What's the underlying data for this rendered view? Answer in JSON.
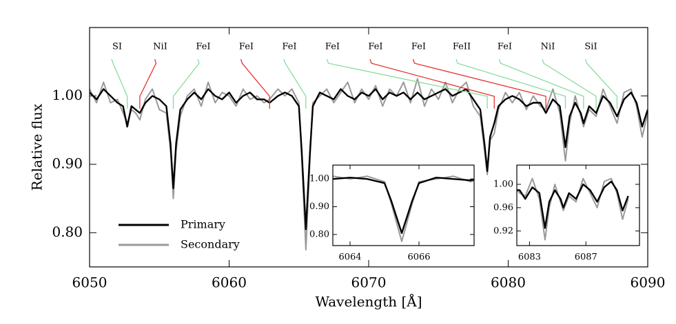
{
  "chart_data": [
    {
      "type": "line",
      "xlabel": "Wavelength [Å]",
      "ylabel": "Relative flux",
      "xlim": [
        6050,
        6090
      ],
      "ylim": [
        0.75,
        1.1
      ],
      "xticks": [
        6050,
        6060,
        6070,
        6080,
        6090
      ],
      "yticks": [
        {
          "value": 0.8,
          "label": "0.80"
        },
        {
          "value": 0.9,
          "label": "0.90"
        },
        {
          "value": 1.0,
          "label": "1.00"
        }
      ],
      "legend": "lower left",
      "x": [
        6050.0,
        6050.5,
        6051.0,
        6051.5,
        6052.0,
        6052.4,
        6052.7,
        6053.0,
        6053.3,
        6053.6,
        6054.0,
        6054.5,
        6055.0,
        6055.5,
        6055.8,
        6056.0,
        6056.2,
        6056.5,
        6057.0,
        6057.5,
        6058.0,
        6058.5,
        6059.0,
        6059.5,
        6060.0,
        6060.5,
        6061.0,
        6061.5,
        6062.0,
        6062.5,
        6062.9,
        6063.5,
        6064.0,
        6064.5,
        6065.0,
        6065.2,
        6065.5,
        6065.8,
        6066.0,
        6066.5,
        6067.0,
        6067.5,
        6068.0,
        6068.5,
        6069.0,
        6069.5,
        6070.0,
        6070.5,
        6071.0,
        6071.5,
        6072.0,
        6072.5,
        6073.0,
        6073.5,
        6074.0,
        6074.5,
        6075.0,
        6075.5,
        6076.0,
        6076.5,
        6077.0,
        6077.5,
        6078.0,
        6078.3,
        6078.5,
        6078.7,
        6079.0,
        6079.3,
        6079.8,
        6080.3,
        6080.8,
        6081.3,
        6081.8,
        6082.3,
        6082.7,
        6083.2,
        6083.7,
        6084.1,
        6084.4,
        6084.8,
        6085.2,
        6085.4,
        6085.8,
        6086.3,
        6086.8,
        6087.3,
        6087.8,
        6088.3,
        6088.8,
        6089.2,
        6089.6,
        6090.0
      ],
      "series": [
        {
          "name": "Primary",
          "color": "#000000",
          "values": [
            1.005,
            0.995,
            1.01,
            1.0,
            0.99,
            0.985,
            0.955,
            0.985,
            0.98,
            0.975,
            0.99,
            1.0,
            0.995,
            0.985,
            0.93,
            0.865,
            0.93,
            0.98,
            0.995,
            1.005,
            0.995,
            1.01,
            1.0,
            0.995,
            1.005,
            0.99,
            1.0,
            1.005,
            0.995,
            0.995,
            0.99,
            1.0,
            1.005,
            1.0,
            0.985,
            0.92,
            0.805,
            0.92,
            0.985,
            1.005,
            1.0,
            0.995,
            1.01,
            1.0,
            0.995,
            1.005,
            1.0,
            1.01,
            0.995,
            1.005,
            1.0,
            1.005,
            0.995,
            1.005,
            0.995,
            1.0,
            1.005,
            1.01,
            1.0,
            1.005,
            1.01,
            0.995,
            0.98,
            0.93,
            0.89,
            0.94,
            0.96,
            0.985,
            0.995,
            1.0,
            0.995,
            0.985,
            0.99,
            0.99,
            0.975,
            0.995,
            0.985,
            0.925,
            0.97,
            0.99,
            0.975,
            0.96,
            0.985,
            0.975,
            1.0,
            0.99,
            0.97,
            0.995,
            1.005,
            0.99,
            0.955,
            0.98
          ]
        },
        {
          "name": "Secondary",
          "color": "#999999",
          "values": [
            1.01,
            0.99,
            1.02,
            0.99,
            0.995,
            0.975,
            0.96,
            0.98,
            0.975,
            0.965,
            0.995,
            1.01,
            0.98,
            0.975,
            0.92,
            0.85,
            0.92,
            0.97,
            1.0,
            1.01,
            0.985,
            1.02,
            0.99,
            1.005,
            1.0,
            0.985,
            1.01,
            0.995,
            1.0,
            0.99,
            0.995,
            1.01,
            1.0,
            1.01,
            0.99,
            0.91,
            0.775,
            0.91,
            0.99,
            1.0,
            1.01,
            0.99,
            1.005,
            1.02,
            0.99,
            1.01,
            0.995,
            1.015,
            0.985,
            1.01,
            1.0,
            1.02,
            0.99,
            1.025,
            0.985,
            1.01,
            0.995,
            1.02,
            0.99,
            1.01,
            1.02,
            0.985,
            0.97,
            0.92,
            0.885,
            0.935,
            0.945,
            0.98,
            1.005,
            0.99,
            1.005,
            0.98,
            1.0,
            0.985,
            0.98,
            1.01,
            0.975,
            0.905,
            0.96,
            1.0,
            0.97,
            0.955,
            0.98,
            0.97,
            1.01,
            0.985,
            0.96,
            1.005,
            1.01,
            0.985,
            0.94,
            0.975
          ]
        }
      ],
      "annotations": [
        {
          "text": "SI",
          "x": 6052.7,
          "color": "#88dd99"
        },
        {
          "text": "NiI",
          "x": 6053.6,
          "color": "#e83030"
        },
        {
          "text": "FeI",
          "x": 6056.0,
          "color": "#88dd99"
        },
        {
          "text": "FeI",
          "x": 6062.9,
          "color": "#e83030"
        },
        {
          "text": "FeI",
          "x": 6065.5,
          "color": "#88dd99"
        },
        {
          "text": "FeI",
          "x": 6078.5,
          "color": "#88dd99"
        },
        {
          "text": "FeI",
          "x": 6079.0,
          "color": "#e83030"
        },
        {
          "text": "FeI",
          "x": 6082.7,
          "color": "#e83030"
        },
        {
          "text": "FeII",
          "x": 6084.1,
          "color": "#88dd99"
        },
        {
          "text": "FeI",
          "x": 6085.4,
          "color": "#88dd99"
        },
        {
          "text": "NiI",
          "x": 6086.3,
          "color": "#88dd99"
        },
        {
          "text": "SiI",
          "x": 6087.8,
          "color": "#88dd99"
        }
      ]
    },
    {
      "type": "inset",
      "xlim": [
        6063.5,
        6067.6
      ],
      "ylim": [
        0.76,
        1.05
      ],
      "xticks": [
        6064,
        6066
      ],
      "yticks": [
        {
          "value": 0.8,
          "label": "0.80"
        },
        {
          "value": 0.9,
          "label": "0.90"
        },
        {
          "value": 1.0,
          "label": "1.00"
        }
      ]
    },
    {
      "type": "inset",
      "xlim": [
        6082.1,
        6090.8
      ],
      "ylim": [
        0.895,
        1.033
      ],
      "xticks": [
        6083,
        6087
      ],
      "yticks": [
        {
          "value": 0.92,
          "label": "0.92"
        },
        {
          "value": 0.96,
          "label": "0.96"
        },
        {
          "value": 1.0,
          "label": "1.00"
        }
      ]
    }
  ]
}
